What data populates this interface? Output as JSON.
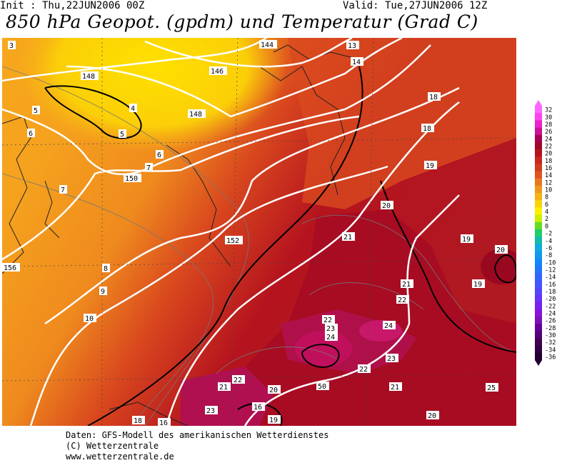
{
  "header": {
    "init": "Init : Thu,22JUN2006 00Z",
    "valid": "Valid: Tue,27JUN2006 12Z",
    "title": "850 hPa Geopot. (gpdm) und Temperatur (Grad C)"
  },
  "map_labels": {
    "geopotential": [
      "144",
      "146",
      "148",
      "148",
      "150",
      "152",
      "156",
      "50"
    ],
    "temperature": [
      "3",
      "4",
      "5",
      "5",
      "6",
      "6",
      "7",
      "7",
      "8",
      "9",
      "10",
      "13",
      "14",
      "16",
      "18",
      "18",
      "19",
      "19",
      "19",
      "19",
      "20",
      "20",
      "20",
      "20",
      "21",
      "21",
      "21",
      "21",
      "22",
      "22",
      "22",
      "22",
      "23",
      "23",
      "23",
      "24",
      "24",
      "25",
      "16",
      "18"
    ]
  },
  "legend": {
    "values": [
      "32",
      "30",
      "28",
      "26",
      "24",
      "22",
      "20",
      "18",
      "16",
      "14",
      "12",
      "10",
      "8",
      "6",
      "4",
      "2",
      "0",
      "-2",
      "-4",
      "-6",
      "-8",
      "-10",
      "-12",
      "-14",
      "-16",
      "-18",
      "-20",
      "-22",
      "-24",
      "-26",
      "-28",
      "-30",
      "-32",
      "-34",
      "-36"
    ],
    "colors": [
      "#ff66ff",
      "#ff44ee",
      "#ee22cc",
      "#cc1199",
      "#aa0055",
      "#a00828",
      "#b5141e",
      "#c8281e",
      "#d23c1e",
      "#e0551e",
      "#e8781e",
      "#f0961e",
      "#f5b414",
      "#fad20a",
      "#fff000",
      "#ccee00",
      "#66dd22",
      "#22cc66",
      "#11bbaa",
      "#11aadd",
      "#1199ee",
      "#1188ff",
      "#2277ff",
      "#3366ff",
      "#4455ff",
      "#5544ff",
      "#6633ff",
      "#7722ee",
      "#8811dd",
      "#7711bb",
      "#660099",
      "#550077",
      "#440055",
      "#330044",
      "#220033"
    ]
  },
  "footer": {
    "line1": "Daten: GFS-Modell des amerikanischen Wetterdienstes",
    "line2": "(C) Wetterzentrale",
    "line3": "www.wetterzentrale.de"
  }
}
